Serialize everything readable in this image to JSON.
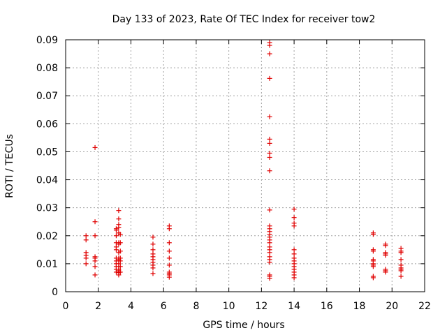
{
  "chart_data": {
    "type": "scatter",
    "title": "Day 133 of 2023, Rate Of TEC Index for receiver tow2",
    "xlabel": "GPS time / hours",
    "ylabel": "ROTI / TECUs",
    "xlim": [
      0,
      22
    ],
    "ylim": [
      0,
      0.09
    ],
    "x_ticks": [
      "0",
      "2",
      "4",
      "6",
      "8",
      "10",
      "12",
      "14",
      "16",
      "18",
      "20",
      "22"
    ],
    "y_ticks": [
      "0",
      "0.01",
      "0.02",
      "0.03",
      "0.04",
      "0.05",
      "0.06",
      "0.07",
      "0.08",
      "0.09"
    ],
    "grid": true,
    "marker": "+",
    "color": "#e00000",
    "series": [
      {
        "points": [
          [
            1.25,
            0.02
          ],
          [
            1.25,
            0.0185
          ],
          [
            1.25,
            0.014
          ],
          [
            1.25,
            0.013
          ],
          [
            1.25,
            0.012
          ],
          [
            1.25,
            0.01
          ],
          [
            1.8,
            0.0515
          ],
          [
            1.8,
            0.025
          ],
          [
            1.8,
            0.02
          ],
          [
            1.8,
            0.0125
          ],
          [
            1.8,
            0.012
          ],
          [
            1.8,
            0.011
          ],
          [
            1.8,
            0.009
          ],
          [
            1.8,
            0.006
          ],
          [
            3.1,
            0.0225
          ],
          [
            3.1,
            0.022
          ],
          [
            3.1,
            0.02
          ],
          [
            3.1,
            0.0175
          ],
          [
            3.1,
            0.016
          ],
          [
            3.1,
            0.015
          ],
          [
            3.1,
            0.012
          ],
          [
            3.1,
            0.011
          ],
          [
            3.1,
            0.01
          ],
          [
            3.1,
            0.009
          ],
          [
            3.1,
            0.008
          ],
          [
            3.1,
            0.007
          ],
          [
            3.25,
            0.029
          ],
          [
            3.25,
            0.026
          ],
          [
            3.25,
            0.024
          ],
          [
            3.25,
            0.023
          ],
          [
            3.25,
            0.021
          ],
          [
            3.25,
            0.0175
          ],
          [
            3.25,
            0.017
          ],
          [
            3.25,
            0.014
          ],
          [
            3.25,
            0.012
          ],
          [
            3.25,
            0.0115
          ],
          [
            3.25,
            0.011
          ],
          [
            3.25,
            0.01
          ],
          [
            3.25,
            0.009
          ],
          [
            3.25,
            0.008
          ],
          [
            3.25,
            0.0075
          ],
          [
            3.25,
            0.0068
          ],
          [
            3.25,
            0.006
          ],
          [
            3.35,
            0.0205
          ],
          [
            3.35,
            0.0175
          ],
          [
            3.35,
            0.0145
          ],
          [
            3.35,
            0.012
          ],
          [
            3.35,
            0.011
          ],
          [
            3.35,
            0.009
          ],
          [
            3.35,
            0.007
          ],
          [
            5.35,
            0.0195
          ],
          [
            5.35,
            0.017
          ],
          [
            5.35,
            0.015
          ],
          [
            5.35,
            0.0135
          ],
          [
            5.35,
            0.0125
          ],
          [
            5.35,
            0.0115
          ],
          [
            5.35,
            0.0105
          ],
          [
            5.35,
            0.0095
          ],
          [
            5.35,
            0.0085
          ],
          [
            5.35,
            0.0065
          ],
          [
            6.35,
            0.0235
          ],
          [
            6.35,
            0.0225
          ],
          [
            6.35,
            0.0175
          ],
          [
            6.35,
            0.0145
          ],
          [
            6.35,
            0.012
          ],
          [
            6.35,
            0.0095
          ],
          [
            6.35,
            0.007
          ],
          [
            6.35,
            0.0065
          ],
          [
            6.35,
            0.006
          ],
          [
            6.35,
            0.0052
          ],
          [
            12.5,
            0.089
          ],
          [
            12.5,
            0.088
          ],
          [
            12.5,
            0.085
          ],
          [
            12.5,
            0.0762
          ],
          [
            12.5,
            0.0625
          ],
          [
            12.5,
            0.0545
          ],
          [
            12.5,
            0.053
          ],
          [
            12.5,
            0.0495
          ],
          [
            12.5,
            0.048
          ],
          [
            12.5,
            0.0432
          ],
          [
            12.5,
            0.0292
          ],
          [
            12.5,
            0.0235
          ],
          [
            12.5,
            0.0225
          ],
          [
            12.5,
            0.0215
          ],
          [
            12.5,
            0.0205
          ],
          [
            12.5,
            0.0195
          ],
          [
            12.5,
            0.0185
          ],
          [
            12.5,
            0.0175
          ],
          [
            12.5,
            0.016
          ],
          [
            12.5,
            0.015
          ],
          [
            12.5,
            0.014
          ],
          [
            12.5,
            0.0125
          ],
          [
            12.5,
            0.0115
          ],
          [
            12.5,
            0.0105
          ],
          [
            12.5,
            0.006
          ],
          [
            12.5,
            0.0055
          ],
          [
            12.5,
            0.0048
          ],
          [
            14.0,
            0.0295
          ],
          [
            14.0,
            0.0265
          ],
          [
            14.0,
            0.0245
          ],
          [
            14.0,
            0.0235
          ],
          [
            14.0,
            0.015
          ],
          [
            14.0,
            0.0135
          ],
          [
            14.0,
            0.012
          ],
          [
            14.0,
            0.011
          ],
          [
            14.0,
            0.01
          ],
          [
            14.0,
            0.009
          ],
          [
            14.0,
            0.008
          ],
          [
            14.0,
            0.007
          ],
          [
            14.0,
            0.006
          ],
          [
            14.0,
            0.005
          ],
          [
            18.85,
            0.021
          ],
          [
            18.85,
            0.0205
          ],
          [
            18.85,
            0.015
          ],
          [
            18.85,
            0.0145
          ],
          [
            18.85,
            0.0115
          ],
          [
            18.85,
            0.011
          ],
          [
            18.85,
            0.01
          ],
          [
            18.85,
            0.0095
          ],
          [
            18.85,
            0.009
          ],
          [
            18.85,
            0.0055
          ],
          [
            18.85,
            0.005
          ],
          [
            19.6,
            0.017
          ],
          [
            19.6,
            0.0165
          ],
          [
            19.6,
            0.014
          ],
          [
            19.6,
            0.0135
          ],
          [
            19.6,
            0.013
          ],
          [
            19.6,
            0.008
          ],
          [
            19.6,
            0.0075
          ],
          [
            19.6,
            0.007
          ],
          [
            20.55,
            0.0155
          ],
          [
            20.55,
            0.0145
          ],
          [
            20.55,
            0.014
          ],
          [
            20.55,
            0.0115
          ],
          [
            20.55,
            0.0095
          ],
          [
            20.55,
            0.0085
          ],
          [
            20.55,
            0.008
          ],
          [
            20.55,
            0.0075
          ],
          [
            20.55,
            0.0055
          ]
        ]
      }
    ]
  }
}
